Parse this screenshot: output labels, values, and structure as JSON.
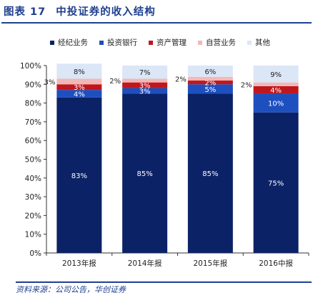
{
  "figure": {
    "label": "图表 17",
    "title": "中投证券的收入结构"
  },
  "source": "资料来源：公司公告，华创证券",
  "colors": {
    "经纪业务": "#0c2266",
    "投资银行": "#1d4fbf",
    "资产管理": "#c0171d",
    "自营业务": "#f2b8b8",
    "其他": "#dbe6f7"
  },
  "chart_data": {
    "type": "bar",
    "stacked": true,
    "categories": [
      "2013年报",
      "2014年报",
      "2015年报",
      "2016中报"
    ],
    "series": [
      {
        "name": "经纪业务",
        "values": [
          83,
          85,
          85,
          75
        ]
      },
      {
        "name": "投资银行",
        "values": [
          4,
          3,
          5,
          10
        ]
      },
      {
        "name": "资产管理",
        "values": [
          3,
          3,
          2,
          4
        ]
      },
      {
        "name": "自营业务",
        "values": [
          3,
          2,
          2,
          2
        ]
      },
      {
        "name": "其他",
        "values": [
          8,
          7,
          6,
          9
        ]
      }
    ],
    "ylim": [
      0,
      100
    ],
    "yticks": [
      "0%",
      "10%",
      "20%",
      "30%",
      "40%",
      "50%",
      "60%",
      "70%",
      "80%",
      "90%",
      "100%"
    ],
    "grid": false,
    "legend": "top"
  }
}
